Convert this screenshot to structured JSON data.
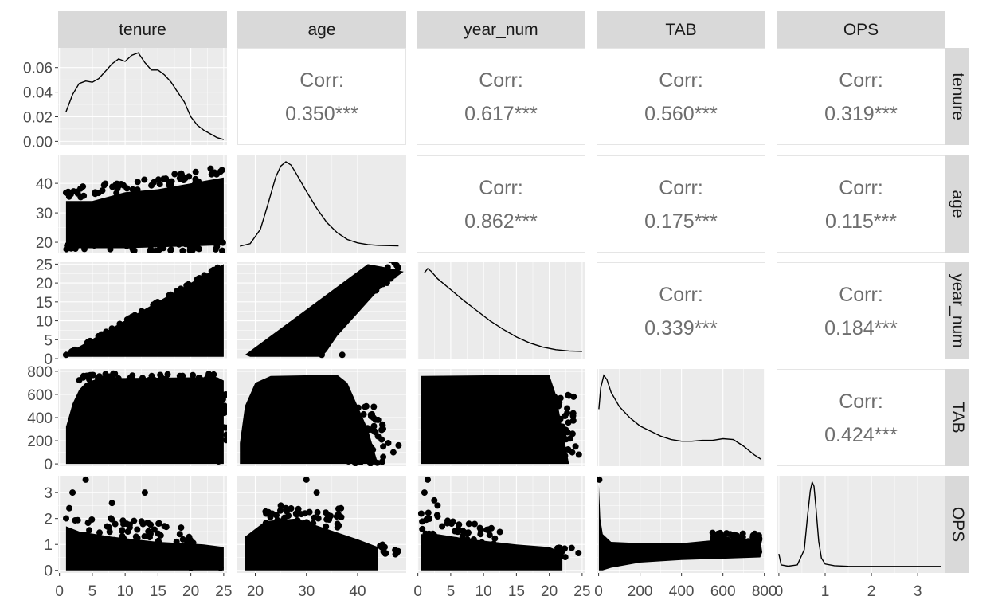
{
  "chart_data": {
    "type": "scatter",
    "variables": [
      "tenure",
      "age",
      "year_num",
      "TAB",
      "OPS"
    ],
    "col_strips": [
      "tenure",
      "age",
      "year_num",
      "TAB",
      "OPS"
    ],
    "row_strips": [
      "tenure",
      "age",
      "year_num",
      "TAB",
      "OPS"
    ],
    "corr_label": "Corr:",
    "correlations": [
      {
        "row": "tenure",
        "col": "age",
        "value": "0.350***"
      },
      {
        "row": "tenure",
        "col": "year_num",
        "value": "0.617***"
      },
      {
        "row": "tenure",
        "col": "TAB",
        "value": "0.560***"
      },
      {
        "row": "tenure",
        "col": "OPS",
        "value": "0.319***"
      },
      {
        "row": "age",
        "col": "year_num",
        "value": "0.862***"
      },
      {
        "row": "age",
        "col": "TAB",
        "value": "0.175***"
      },
      {
        "row": "age",
        "col": "OPS",
        "value": "0.115***"
      },
      {
        "row": "year_num",
        "col": "TAB",
        "value": "0.339***"
      },
      {
        "row": "year_num",
        "col": "OPS",
        "value": "0.184***"
      },
      {
        "row": "TAB",
        "col": "OPS",
        "value": "0.424***"
      }
    ],
    "x_ranges": {
      "tenure": [
        -0.2,
        25.5
      ],
      "age": [
        16.5,
        49.5
      ],
      "year_num": [
        -0.2,
        25.5
      ],
      "TAB": [
        -10,
        805
      ],
      "OPS": [
        -0.05,
        3.6
      ]
    },
    "x_ticks": {
      "tenure": [
        0,
        5,
        10,
        15,
        20,
        25
      ],
      "age": [
        20,
        30,
        40
      ],
      "year_num": [
        0,
        5,
        10,
        15,
        20,
        25
      ],
      "TAB": [
        0,
        200,
        400,
        600,
        800
      ],
      "OPS": [
        0,
        1,
        2,
        3
      ]
    },
    "y_ranges": {
      "tenure": [
        -0.003,
        0.076
      ],
      "age": [
        16.5,
        49.5
      ],
      "year_num": [
        -0.2,
        25.5
      ],
      "TAB": [
        -20,
        820
      ],
      "OPS": [
        -0.1,
        3.65
      ]
    },
    "y_ticks": {
      "tenure": [
        "0.00",
        "0.02",
        "0.04",
        "0.06"
      ],
      "age": [
        "20",
        "30",
        "40"
      ],
      "year_num": [
        "0",
        "5",
        "10",
        "15",
        "20",
        "25"
      ],
      "TAB": [
        "0",
        "200",
        "400",
        "600",
        "800"
      ],
      "OPS": [
        "0",
        "1",
        "2",
        "3"
      ]
    },
    "density_curves": {
      "tenure": [
        [
          1,
          0.024
        ],
        [
          2,
          0.038
        ],
        [
          3,
          0.047
        ],
        [
          4,
          0.049
        ],
        [
          5,
          0.048
        ],
        [
          6,
          0.051
        ],
        [
          7,
          0.057
        ],
        [
          8,
          0.063
        ],
        [
          9,
          0.067
        ],
        [
          10,
          0.065
        ],
        [
          11,
          0.07
        ],
        [
          12,
          0.072
        ],
        [
          13,
          0.064
        ],
        [
          14,
          0.058
        ],
        [
          15,
          0.058
        ],
        [
          16,
          0.054
        ],
        [
          17,
          0.048
        ],
        [
          18,
          0.04
        ],
        [
          19,
          0.032
        ],
        [
          20,
          0.02
        ],
        [
          21,
          0.013
        ],
        [
          22,
          0.009
        ],
        [
          23,
          0.006
        ],
        [
          24,
          0.003
        ],
        [
          25,
          0.0015
        ]
      ],
      "age": [
        [
          17,
          0
        ],
        [
          19,
          0.03
        ],
        [
          21,
          0.2
        ],
        [
          22.5,
          0.5
        ],
        [
          24,
          0.82
        ],
        [
          25,
          0.95
        ],
        [
          26,
          1.0
        ],
        [
          27,
          0.96
        ],
        [
          28,
          0.86
        ],
        [
          30,
          0.65
        ],
        [
          32,
          0.45
        ],
        [
          34,
          0.28
        ],
        [
          36,
          0.16
        ],
        [
          38,
          0.08
        ],
        [
          40,
          0.04
        ],
        [
          42,
          0.02
        ],
        [
          44,
          0.01
        ],
        [
          48,
          0.005
        ]
      ],
      "year_num": [
        [
          1,
          0.95
        ],
        [
          1.5,
          1.0
        ],
        [
          2,
          0.97
        ],
        [
          3,
          0.88
        ],
        [
          5,
          0.75
        ],
        [
          7,
          0.62
        ],
        [
          9,
          0.5
        ],
        [
          11,
          0.38
        ],
        [
          13,
          0.28
        ],
        [
          15,
          0.19
        ],
        [
          17,
          0.12
        ],
        [
          19,
          0.07
        ],
        [
          21,
          0.04
        ],
        [
          23,
          0.025
        ],
        [
          25,
          0.02
        ]
      ],
      "TAB": [
        [
          1,
          0.6
        ],
        [
          10,
          0.85
        ],
        [
          25,
          1.0
        ],
        [
          40,
          0.95
        ],
        [
          60,
          0.8
        ],
        [
          100,
          0.63
        ],
        [
          150,
          0.5
        ],
        [
          200,
          0.4
        ],
        [
          250,
          0.34
        ],
        [
          300,
          0.28
        ],
        [
          350,
          0.24
        ],
        [
          400,
          0.22
        ],
        [
          450,
          0.22
        ],
        [
          500,
          0.23
        ],
        [
          550,
          0.23
        ],
        [
          600,
          0.25
        ],
        [
          650,
          0.24
        ],
        [
          700,
          0.16
        ],
        [
          750,
          0.06
        ],
        [
          785,
          0.005
        ]
      ],
      "OPS": [
        [
          0,
          0.15
        ],
        [
          0.05,
          0.02
        ],
        [
          0.2,
          0.005
        ],
        [
          0.4,
          0.02
        ],
        [
          0.55,
          0.2
        ],
        [
          0.62,
          0.6
        ],
        [
          0.68,
          0.9
        ],
        [
          0.72,
          1.0
        ],
        [
          0.76,
          0.95
        ],
        [
          0.8,
          0.7
        ],
        [
          0.86,
          0.3
        ],
        [
          0.92,
          0.1
        ],
        [
          1.0,
          0.03
        ],
        [
          1.2,
          0.01
        ],
        [
          1.5,
          0.003
        ],
        [
          2.0,
          0.002
        ],
        [
          3.5,
          0.002
        ]
      ]
    },
    "colors": {
      "panel": "#ebebeb",
      "grid": "#ffffff",
      "strip": "#d9d9d9",
      "points": "#000000",
      "corr_text": "#6e6e6e",
      "axis_text": "#4d4d4d"
    }
  }
}
